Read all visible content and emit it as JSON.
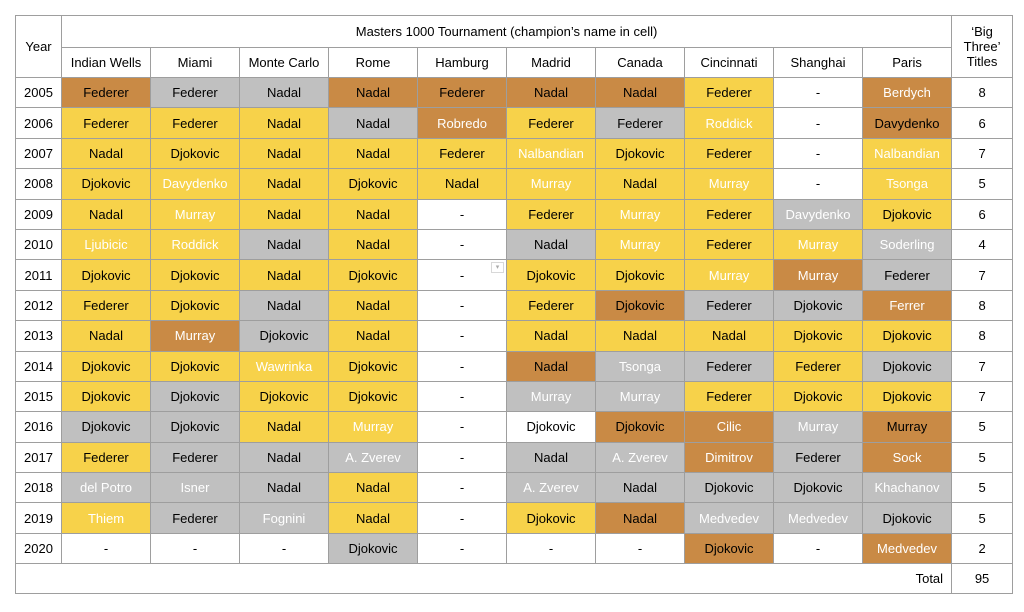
{
  "table": {
    "title": "Masters 1000 Tournament (champion’s name in cell)",
    "year_header": "Year",
    "big_three_header": "‘Big Three’ Titles",
    "tournaments": [
      "Indian Wells",
      "Miami",
      "Monte Carlo",
      "Rome",
      "Hamburg",
      "Madrid",
      "Canada",
      "Cincinnati",
      "Shanghai",
      "Paris"
    ],
    "total_label": "Total",
    "total_value": "95",
    "rows": [
      {
        "year": "2005",
        "count": "8",
        "cells": [
          {
            "name": "Federer",
            "fill": "bronze"
          },
          {
            "name": "Federer",
            "fill": "grey"
          },
          {
            "name": "Nadal",
            "fill": "grey"
          },
          {
            "name": "Nadal",
            "fill": "bronze"
          },
          {
            "name": "Federer",
            "fill": "bronze"
          },
          {
            "name": "Nadal",
            "fill": "bronze"
          },
          {
            "name": "Nadal",
            "fill": "bronze"
          },
          {
            "name": "Federer",
            "fill": "yellow"
          },
          {
            "name": "-",
            "fill": "white"
          },
          {
            "name": "Berdych",
            "fill": "bronze",
            "light": true
          }
        ]
      },
      {
        "year": "2006",
        "count": "6",
        "cells": [
          {
            "name": "Federer",
            "fill": "yellow"
          },
          {
            "name": "Federer",
            "fill": "yellow"
          },
          {
            "name": "Nadal",
            "fill": "yellow"
          },
          {
            "name": "Nadal",
            "fill": "grey"
          },
          {
            "name": "Robredo",
            "fill": "bronze",
            "light": true
          },
          {
            "name": "Federer",
            "fill": "yellow"
          },
          {
            "name": "Federer",
            "fill": "grey"
          },
          {
            "name": "Roddick",
            "fill": "yellow",
            "light": true
          },
          {
            "name": "-",
            "fill": "white"
          },
          {
            "name": "Davydenko",
            "fill": "bronze"
          }
        ]
      },
      {
        "year": "2007",
        "count": "7",
        "cells": [
          {
            "name": "Nadal",
            "fill": "yellow"
          },
          {
            "name": "Djokovic",
            "fill": "yellow"
          },
          {
            "name": "Nadal",
            "fill": "yellow"
          },
          {
            "name": "Nadal",
            "fill": "yellow"
          },
          {
            "name": "Federer",
            "fill": "yellow"
          },
          {
            "name": "Nalbandian",
            "fill": "yellow",
            "light": true
          },
          {
            "name": "Djokovic",
            "fill": "yellow"
          },
          {
            "name": "Federer",
            "fill": "yellow"
          },
          {
            "name": "-",
            "fill": "white"
          },
          {
            "name": "Nalbandian",
            "fill": "yellow",
            "light": true
          }
        ]
      },
      {
        "year": "2008",
        "count": "5",
        "cells": [
          {
            "name": "Djokovic",
            "fill": "yellow"
          },
          {
            "name": "Davydenko",
            "fill": "yellow",
            "light": true
          },
          {
            "name": "Nadal",
            "fill": "yellow"
          },
          {
            "name": "Djokovic",
            "fill": "yellow"
          },
          {
            "name": "Nadal",
            "fill": "yellow"
          },
          {
            "name": "Murray",
            "fill": "yellow",
            "light": true
          },
          {
            "name": "Nadal",
            "fill": "yellow"
          },
          {
            "name": "Murray",
            "fill": "yellow",
            "light": true
          },
          {
            "name": "-",
            "fill": "white"
          },
          {
            "name": "Tsonga",
            "fill": "yellow",
            "light": true
          }
        ]
      },
      {
        "year": "2009",
        "count": "6",
        "cells": [
          {
            "name": "Nadal",
            "fill": "yellow"
          },
          {
            "name": "Murray",
            "fill": "yellow",
            "light": true
          },
          {
            "name": "Nadal",
            "fill": "yellow"
          },
          {
            "name": "Nadal",
            "fill": "yellow"
          },
          {
            "name": "-",
            "fill": "white"
          },
          {
            "name": "Federer",
            "fill": "yellow"
          },
          {
            "name": "Murray",
            "fill": "yellow",
            "light": true
          },
          {
            "name": "Federer",
            "fill": "yellow"
          },
          {
            "name": "Davydenko",
            "fill": "grey",
            "light": true
          },
          {
            "name": "Djokovic",
            "fill": "yellow"
          }
        ]
      },
      {
        "year": "2010",
        "count": "4",
        "cells": [
          {
            "name": "Ljubicic",
            "fill": "yellow",
            "light": true
          },
          {
            "name": "Roddick",
            "fill": "yellow",
            "light": true
          },
          {
            "name": "Nadal",
            "fill": "grey"
          },
          {
            "name": "Nadal",
            "fill": "yellow"
          },
          {
            "name": "-",
            "fill": "white"
          },
          {
            "name": "Nadal",
            "fill": "grey"
          },
          {
            "name": "Murray",
            "fill": "yellow",
            "light": true
          },
          {
            "name": "Federer",
            "fill": "yellow"
          },
          {
            "name": "Murray",
            "fill": "yellow",
            "light": true
          },
          {
            "name": "Soderling",
            "fill": "grey",
            "light": true
          }
        ]
      },
      {
        "year": "2011",
        "count": "7",
        "cells": [
          {
            "name": "Djokovic",
            "fill": "yellow"
          },
          {
            "name": "Djokovic",
            "fill": "yellow"
          },
          {
            "name": "Nadal",
            "fill": "yellow"
          },
          {
            "name": "Djokovic",
            "fill": "yellow"
          },
          {
            "name": "-",
            "fill": "white"
          },
          {
            "name": "Djokovic",
            "fill": "yellow"
          },
          {
            "name": "Djokovic",
            "fill": "yellow"
          },
          {
            "name": "Murray",
            "fill": "yellow",
            "light": true
          },
          {
            "name": "Murray",
            "fill": "bronze",
            "light": true
          },
          {
            "name": "Federer",
            "fill": "grey"
          }
        ]
      },
      {
        "year": "2012",
        "count": "8",
        "cells": [
          {
            "name": "Federer",
            "fill": "yellow"
          },
          {
            "name": "Djokovic",
            "fill": "yellow"
          },
          {
            "name": "Nadal",
            "fill": "grey"
          },
          {
            "name": "Nadal",
            "fill": "yellow"
          },
          {
            "name": "-",
            "fill": "white"
          },
          {
            "name": "Federer",
            "fill": "yellow"
          },
          {
            "name": "Djokovic",
            "fill": "bronze"
          },
          {
            "name": "Federer",
            "fill": "grey"
          },
          {
            "name": "Djokovic",
            "fill": "grey"
          },
          {
            "name": "Ferrer",
            "fill": "bronze",
            "light": true
          }
        ]
      },
      {
        "year": "2013",
        "count": "8",
        "cells": [
          {
            "name": "Nadal",
            "fill": "yellow"
          },
          {
            "name": "Murray",
            "fill": "bronze",
            "light": true
          },
          {
            "name": "Djokovic",
            "fill": "grey"
          },
          {
            "name": "Nadal",
            "fill": "yellow"
          },
          {
            "name": "-",
            "fill": "white"
          },
          {
            "name": "Nadal",
            "fill": "yellow"
          },
          {
            "name": "Nadal",
            "fill": "yellow"
          },
          {
            "name": "Nadal",
            "fill": "yellow"
          },
          {
            "name": "Djokovic",
            "fill": "yellow"
          },
          {
            "name": "Djokovic",
            "fill": "yellow"
          }
        ]
      },
      {
        "year": "2014",
        "count": "7",
        "cells": [
          {
            "name": "Djokovic",
            "fill": "yellow"
          },
          {
            "name": "Djokovic",
            "fill": "yellow"
          },
          {
            "name": "Wawrinka",
            "fill": "yellow",
            "light": true
          },
          {
            "name": "Djokovic",
            "fill": "yellow"
          },
          {
            "name": "-",
            "fill": "white"
          },
          {
            "name": "Nadal",
            "fill": "bronze"
          },
          {
            "name": "Tsonga",
            "fill": "grey",
            "light": true
          },
          {
            "name": "Federer",
            "fill": "grey"
          },
          {
            "name": "Federer",
            "fill": "yellow"
          },
          {
            "name": "Djokovic",
            "fill": "grey"
          }
        ]
      },
      {
        "year": "2015",
        "count": "7",
        "cells": [
          {
            "name": "Djokovic",
            "fill": "yellow"
          },
          {
            "name": "Djokovic",
            "fill": "grey"
          },
          {
            "name": "Djokovic",
            "fill": "yellow"
          },
          {
            "name": "Djokovic",
            "fill": "yellow"
          },
          {
            "name": "-",
            "fill": "white"
          },
          {
            "name": "Murray",
            "fill": "grey",
            "light": true
          },
          {
            "name": "Murray",
            "fill": "grey",
            "light": true
          },
          {
            "name": "Federer",
            "fill": "yellow"
          },
          {
            "name": "Djokovic",
            "fill": "yellow"
          },
          {
            "name": "Djokovic",
            "fill": "yellow"
          }
        ]
      },
      {
        "year": "2016",
        "count": "5",
        "cells": [
          {
            "name": "Djokovic",
            "fill": "grey"
          },
          {
            "name": "Djokovic",
            "fill": "grey"
          },
          {
            "name": "Nadal",
            "fill": "yellow"
          },
          {
            "name": "Murray",
            "fill": "yellow",
            "light": true
          },
          {
            "name": "-",
            "fill": "white"
          },
          {
            "name": "Djokovic",
            "fill": "white"
          },
          {
            "name": "Djokovic",
            "fill": "bronze"
          },
          {
            "name": "Cilic",
            "fill": "bronze",
            "light": true
          },
          {
            "name": "Murray",
            "fill": "grey",
            "light": true
          },
          {
            "name": "Murray",
            "fill": "bronze"
          }
        ]
      },
      {
        "year": "2017",
        "count": "5",
        "cells": [
          {
            "name": "Federer",
            "fill": "yellow"
          },
          {
            "name": "Federer",
            "fill": "grey"
          },
          {
            "name": "Nadal",
            "fill": "grey"
          },
          {
            "name": "A. Zverev",
            "fill": "grey",
            "light": true
          },
          {
            "name": "-",
            "fill": "white"
          },
          {
            "name": "Nadal",
            "fill": "grey"
          },
          {
            "name": "A. Zverev",
            "fill": "grey",
            "light": true
          },
          {
            "name": "Dimitrov",
            "fill": "bronze",
            "light": true
          },
          {
            "name": "Federer",
            "fill": "grey"
          },
          {
            "name": "Sock",
            "fill": "bronze",
            "light": true
          }
        ]
      },
      {
        "year": "2018",
        "count": "5",
        "cells": [
          {
            "name": "del Potro",
            "fill": "grey",
            "light": true
          },
          {
            "name": "Isner",
            "fill": "grey",
            "light": true
          },
          {
            "name": "Nadal",
            "fill": "grey"
          },
          {
            "name": "Nadal",
            "fill": "yellow"
          },
          {
            "name": "-",
            "fill": "white"
          },
          {
            "name": "A. Zverev",
            "fill": "grey",
            "light": true
          },
          {
            "name": "Nadal",
            "fill": "grey"
          },
          {
            "name": "Djokovic",
            "fill": "grey"
          },
          {
            "name": "Djokovic",
            "fill": "grey"
          },
          {
            "name": "Khachanov",
            "fill": "grey",
            "light": true
          }
        ]
      },
      {
        "year": "2019",
        "count": "5",
        "cells": [
          {
            "name": "Thiem",
            "fill": "yellow",
            "light": true
          },
          {
            "name": "Federer",
            "fill": "grey"
          },
          {
            "name": "Fognini",
            "fill": "grey",
            "light": true
          },
          {
            "name": "Nadal",
            "fill": "yellow"
          },
          {
            "name": "-",
            "fill": "white"
          },
          {
            "name": "Djokovic",
            "fill": "yellow"
          },
          {
            "name": "Nadal",
            "fill": "bronze"
          },
          {
            "name": "Medvedev",
            "fill": "grey",
            "light": true
          },
          {
            "name": "Medvedev",
            "fill": "grey",
            "light": true
          },
          {
            "name": "Djokovic",
            "fill": "grey"
          }
        ]
      },
      {
        "year": "2020",
        "count": "2",
        "cells": [
          {
            "name": "-",
            "fill": "white"
          },
          {
            "name": "-",
            "fill": "white"
          },
          {
            "name": "-",
            "fill": "white"
          },
          {
            "name": "Djokovic",
            "fill": "grey"
          },
          {
            "name": "-",
            "fill": "white"
          },
          {
            "name": "-",
            "fill": "white"
          },
          {
            "name": "-",
            "fill": "white"
          },
          {
            "name": "Djokovic",
            "fill": "bronze"
          },
          {
            "name": "-",
            "fill": "white"
          },
          {
            "name": "Medvedev",
            "fill": "bronze",
            "light": true
          }
        ]
      }
    ]
  },
  "colors": {
    "yellow": "#f7d24a",
    "grey": "#c0c0c0",
    "bronze": "#c98a45",
    "white": "#ffffff"
  }
}
